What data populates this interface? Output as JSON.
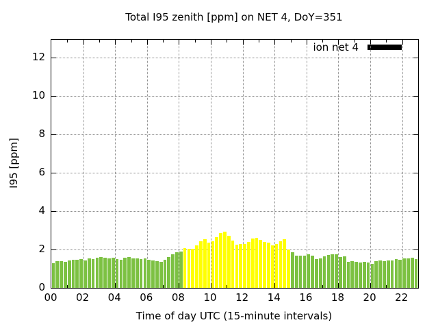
{
  "title": "Total I95 zenith [ppm] on NET 4, DoY=351",
  "chart_data": {
    "type": "bar",
    "title": "Total I95 zenith [ppm] on NET 4, DoY=351",
    "xlabel": "Time of day UTC (15-minute intervals)",
    "ylabel": "I95 [ppm]",
    "x_start_time": "00:00",
    "x_step_minutes": 15,
    "bar_count": 92,
    "x_tick_labels": [
      "00",
      "02",
      "04",
      "06",
      "08",
      "10",
      "12",
      "14",
      "16",
      "18",
      "20",
      "22"
    ],
    "x_tick_hours": [
      0,
      2,
      4,
      6,
      8,
      10,
      12,
      14,
      16,
      18,
      20,
      22
    ],
    "xlim_hours": [
      0,
      23
    ],
    "y_ticks": [
      0,
      2,
      4,
      6,
      8,
      10,
      12
    ],
    "ylim": [
      0,
      12.93
    ],
    "grid": "dotted",
    "legend": {
      "label": "ion net 4",
      "swatch_color": "#000000",
      "position": "top-right-inside"
    },
    "colors": {
      "green": "#7cc142",
      "yellow": "#ffff00",
      "grid": "#8a8a8a",
      "border": "#000000"
    },
    "yellow_index_range": [
      33,
      59
    ],
    "yellow_time_range": [
      "08:15",
      "14:45"
    ],
    "series": [
      {
        "name": "ion net 4",
        "values": [
          1.3,
          1.38,
          1.4,
          1.36,
          1.43,
          1.45,
          1.46,
          1.49,
          1.44,
          1.52,
          1.51,
          1.56,
          1.62,
          1.58,
          1.52,
          1.58,
          1.5,
          1.48,
          1.58,
          1.61,
          1.52,
          1.52,
          1.5,
          1.52,
          1.46,
          1.43,
          1.4,
          1.37,
          1.45,
          1.6,
          1.76,
          1.86,
          1.9,
          2.07,
          2.02,
          2.02,
          2.23,
          2.43,
          2.55,
          2.35,
          2.43,
          2.64,
          2.86,
          2.94,
          2.7,
          2.46,
          2.26,
          2.29,
          2.29,
          2.4,
          2.58,
          2.62,
          2.5,
          2.4,
          2.35,
          2.23,
          2.3,
          2.43,
          2.52,
          2.0,
          1.85,
          1.67,
          1.67,
          1.67,
          1.74,
          1.69,
          1.49,
          1.55,
          1.64,
          1.71,
          1.74,
          1.74,
          1.62,
          1.64,
          1.35,
          1.38,
          1.37,
          1.32,
          1.35,
          1.31,
          1.26,
          1.38,
          1.43,
          1.4,
          1.43,
          1.43,
          1.49,
          1.46,
          1.52,
          1.55,
          1.58,
          1.5
        ]
      }
    ]
  }
}
